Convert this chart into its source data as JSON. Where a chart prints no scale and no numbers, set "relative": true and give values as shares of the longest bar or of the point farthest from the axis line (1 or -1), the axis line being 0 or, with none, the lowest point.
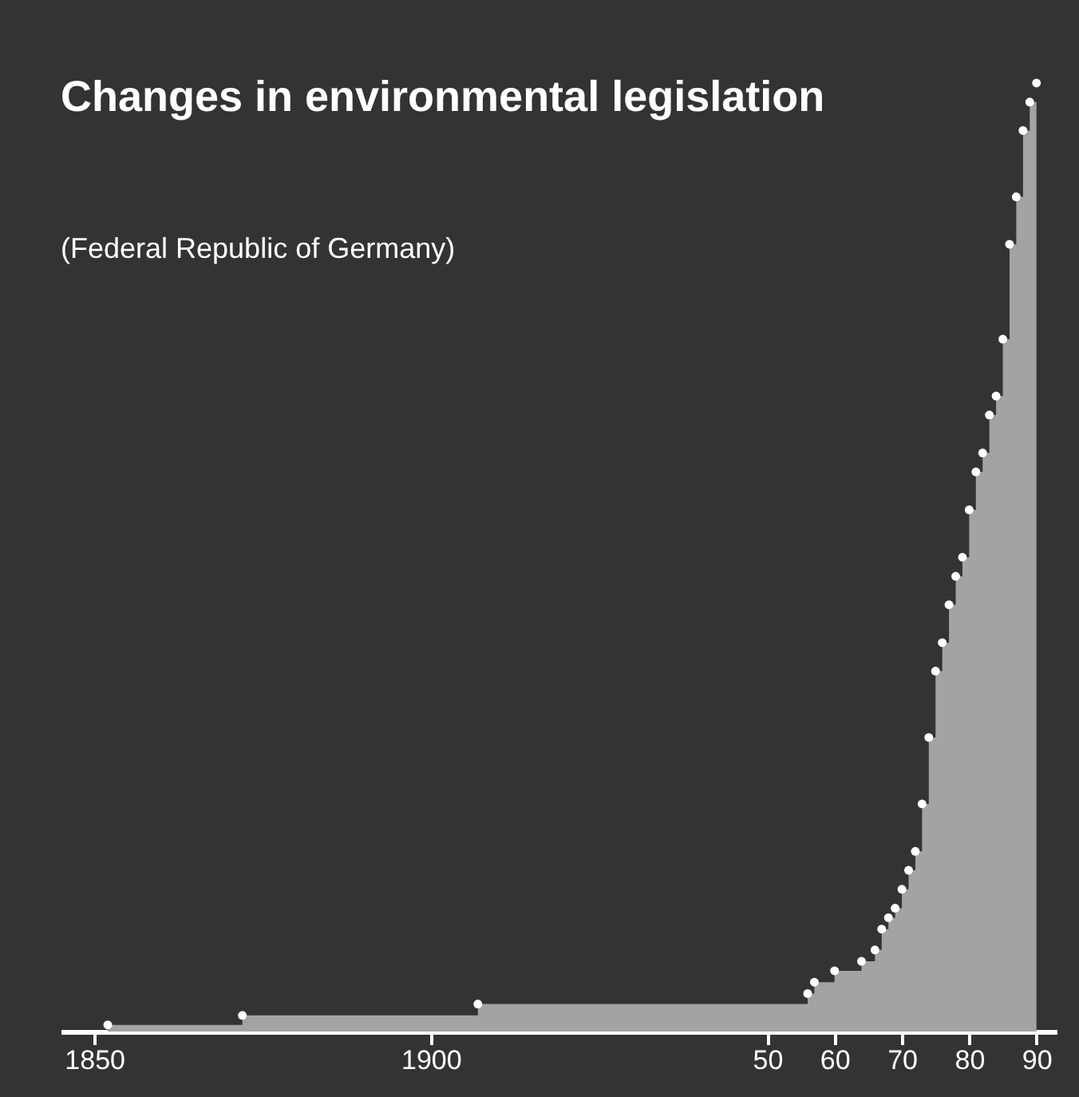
{
  "chart_data": {
    "type": "area",
    "title": "Changes in environmental legislation",
    "subtitle": "(Federal Republic of Germany)",
    "relative": true,
    "marker": "circle",
    "grid": false,
    "xlim": [
      1845,
      1993
    ],
    "xticks": [
      1850,
      1900,
      {
        "value": 1950,
        "label": "50"
      },
      {
        "value": 1960,
        "label": "60"
      },
      {
        "value": 1970,
        "label": "70"
      },
      {
        "value": 1980,
        "label": "80"
      },
      {
        "value": 1990,
        "label": "90"
      }
    ],
    "series": [
      {
        "color": "#a3a3a3",
        "x": [
          1852,
          1872,
          1907,
          1956,
          1957,
          1960,
          1964,
          1966,
          1967,
          1968,
          1969,
          1970,
          1971,
          1972,
          1973,
          1974,
          1975,
          1976,
          1977,
          1978,
          1979,
          1980,
          1981,
          1982,
          1983,
          1984,
          1985,
          1986,
          1987,
          1988,
          1989,
          1990
        ],
        "values": [
          0.007,
          0.017,
          0.029,
          0.04,
          0.052,
          0.064,
          0.074,
          0.086,
          0.108,
          0.12,
          0.13,
          0.15,
          0.17,
          0.19,
          0.24,
          0.31,
          0.38,
          0.41,
          0.45,
          0.48,
          0.5,
          0.55,
          0.59,
          0.61,
          0.65,
          0.67,
          0.73,
          0.83,
          0.88,
          0.95,
          0.98,
          1.0
        ]
      }
    ]
  }
}
